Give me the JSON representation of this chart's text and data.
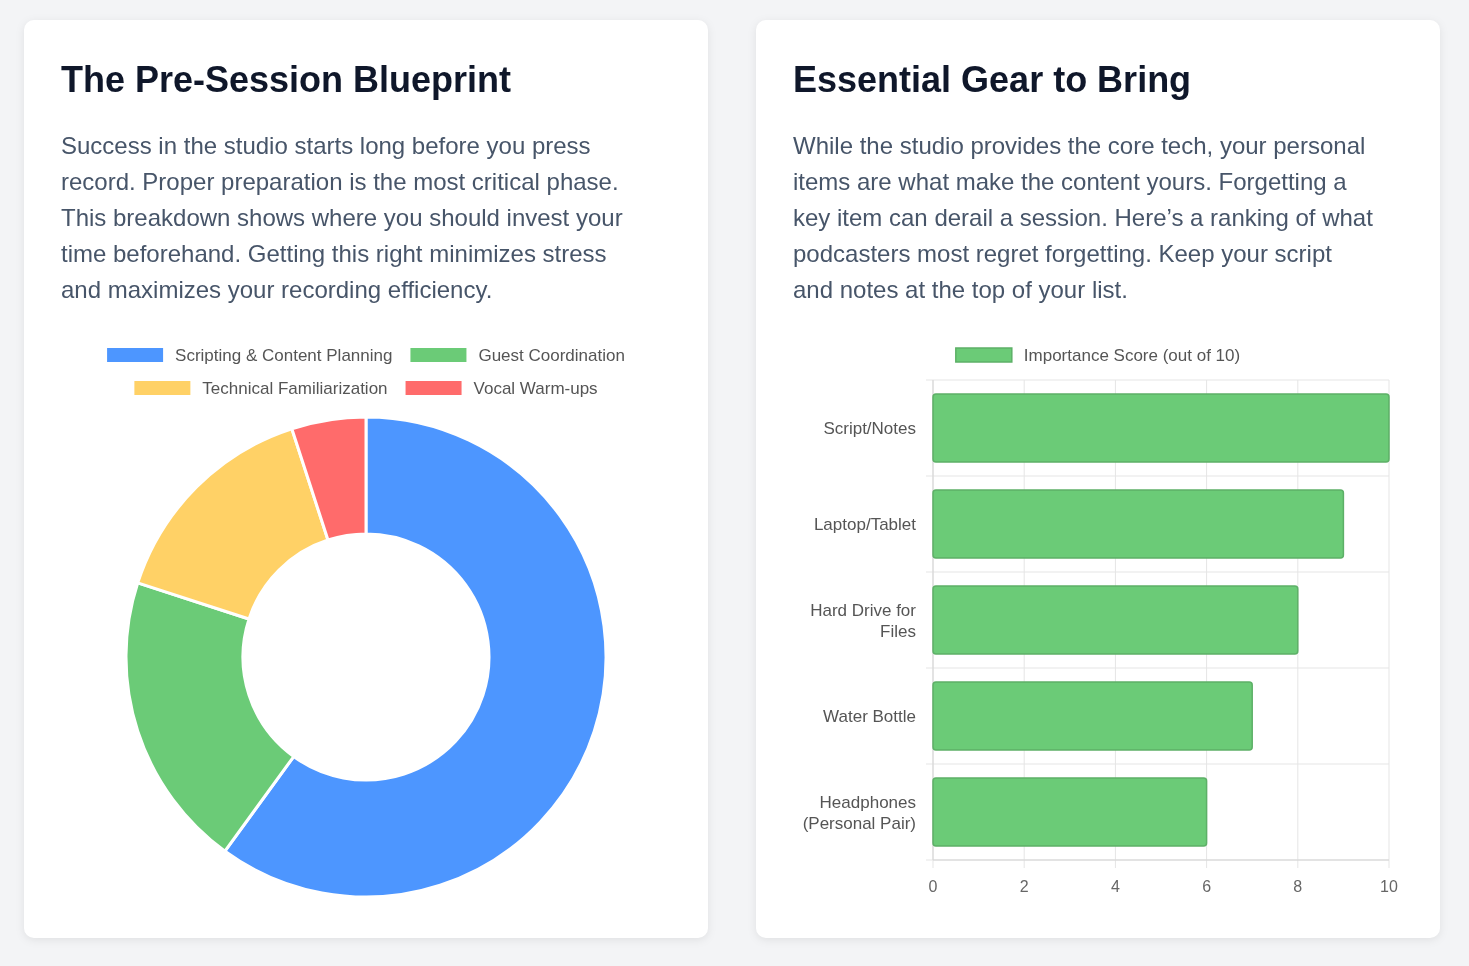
{
  "chart_data": [
    {
      "type": "donut",
      "title": "The Pre-Session Blueprint",
      "subtitle": "Success in the studio starts long before you press record. Proper preparation is the most critical phase. This breakdown shows where you should invest your time beforehand. Getting this right minimizes stress and maximizes your recording efficiency.",
      "categories": [
        "Scripting & Content Planning",
        "Guest Coordination",
        "Technical Familiarization",
        "Vocal Warm-ups"
      ],
      "values": [
        60,
        20,
        15,
        5
      ],
      "colors": [
        "#4d96ff",
        "#6bcb77",
        "#ffd166",
        "#ff6b6b"
      ],
      "legend": "top"
    },
    {
      "type": "bar",
      "orientation": "horizontal",
      "title": "Essential Gear to Bring",
      "subtitle": "While the studio provides the core tech, your personal items are what make the content yours. Forgetting a key item can derail a session. Here’s a ranking of what podcasters most regret forgetting. Keep your script and notes at the top of your list.",
      "categories": [
        "Script/Notes",
        "Laptop/Tablet",
        "Hard Drive for Files",
        "Water Bottle",
        "Headphones (Personal Pair)"
      ],
      "series": [
        {
          "name": "Importance Score (out of 10)",
          "color": "#6bcb77",
          "values": [
            10,
            9,
            8,
            7,
            6
          ]
        }
      ],
      "xlim": [
        0,
        10
      ],
      "xticks": [
        0,
        2,
        4,
        6,
        8,
        10
      ],
      "grid": true,
      "legend": "top"
    }
  ]
}
